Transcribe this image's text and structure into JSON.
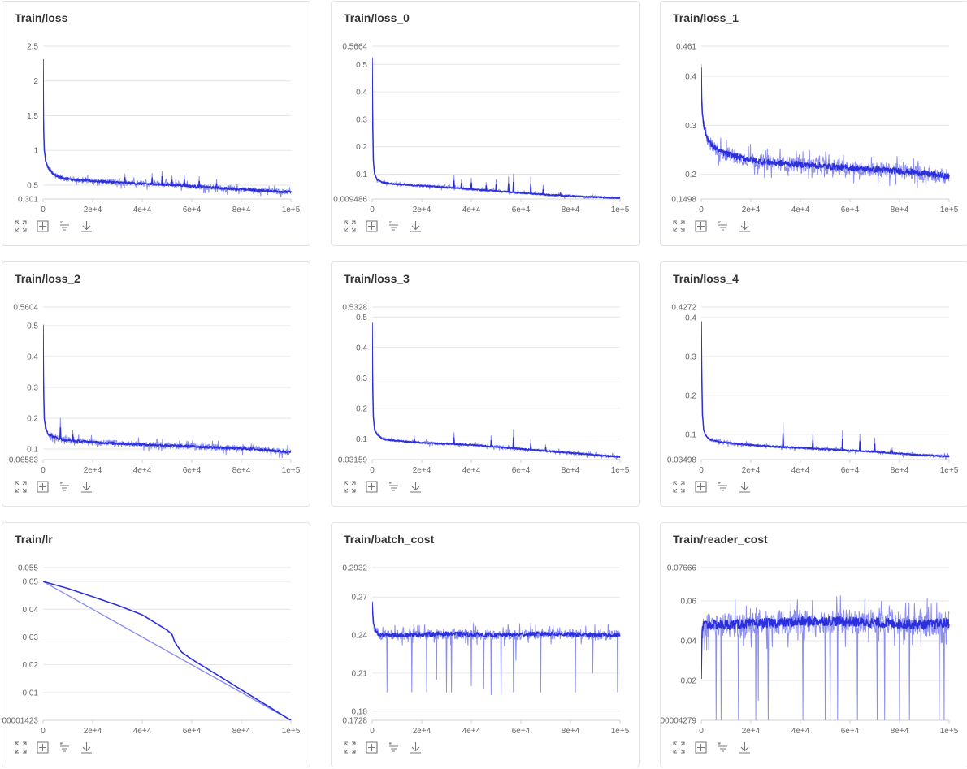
{
  "colors": {
    "line": "#2b2fdc",
    "raw": "#8c8ef0",
    "grid": "#e6e6e6",
    "axis": "#d0d0d0"
  },
  "toolbar": {
    "expand_icon": "expand-icon",
    "fit_icon": "fit-icon",
    "filter_icon": "filter-icon",
    "download_icon": "download-icon"
  },
  "chart_data": [
    {
      "type": "line",
      "title": "Train/loss",
      "x_ticks": [
        "0",
        "2e+4",
        "4e+4",
        "6e+4",
        "8e+4",
        "1e+5"
      ],
      "xlim": [
        0,
        100000
      ],
      "ylim": [
        0.301,
        2.5
      ],
      "y_ticks": [
        {
          "v": 2.5,
          "label": "2.5"
        },
        {
          "v": 2,
          "label": "2"
        },
        {
          "v": 1.5,
          "label": "1.5"
        },
        {
          "v": 1,
          "label": "1"
        },
        {
          "v": 0.5,
          "label": "0.5"
        },
        {
          "v": 0.301,
          "label": "0.301"
        }
      ],
      "series": [
        {
          "name": "smoothed",
          "x": [
            0,
            200,
            500,
            1000,
            2000,
            4000,
            8000,
            15000,
            25000,
            40000,
            55000,
            70000,
            85000,
            100000
          ],
          "values": [
            2.3,
            1.3,
            1.0,
            0.85,
            0.75,
            0.66,
            0.6,
            0.57,
            0.55,
            0.52,
            0.5,
            0.46,
            0.43,
            0.4
          ]
        }
      ],
      "noise": 0.04,
      "spikes": [
        [
          17000,
          0.62
        ],
        [
          33000,
          0.66
        ],
        [
          44000,
          0.67
        ],
        [
          48000,
          0.7
        ],
        [
          52000,
          0.63
        ],
        [
          57000,
          0.65
        ],
        [
          63000,
          0.62
        ],
        [
          70000,
          0.58
        ]
      ]
    },
    {
      "type": "line",
      "title": "Train/loss_0",
      "x_ticks": [
        "0",
        "2e+4",
        "4e+4",
        "6e+4",
        "8e+4",
        "1e+5"
      ],
      "xlim": [
        0,
        100000
      ],
      "ylim": [
        0.009486,
        0.5664
      ],
      "y_ticks": [
        {
          "v": 0.5664,
          "label": "0.5664"
        },
        {
          "v": 0.5,
          "label": "0.5"
        },
        {
          "v": 0.4,
          "label": "0.4"
        },
        {
          "v": 0.3,
          "label": "0.3"
        },
        {
          "v": 0.2,
          "label": "0.2"
        },
        {
          "v": 0.1,
          "label": "0.1"
        },
        {
          "v": 0.009486,
          "label": "0.009486"
        }
      ],
      "series": [
        {
          "name": "smoothed",
          "x": [
            0,
            200,
            500,
            1000,
            2000,
            4000,
            8000,
            15000,
            25000,
            40000,
            55000,
            70000,
            85000,
            100000
          ],
          "values": [
            0.52,
            0.3,
            0.15,
            0.1,
            0.08,
            0.07,
            0.065,
            0.06,
            0.055,
            0.045,
            0.035,
            0.025,
            0.018,
            0.013
          ]
        }
      ],
      "noise": 0.005,
      "spikes": [
        [
          33000,
          0.095
        ],
        [
          36000,
          0.08
        ],
        [
          40000,
          0.085
        ],
        [
          46000,
          0.07
        ],
        [
          50000,
          0.08
        ],
        [
          55000,
          0.09
        ],
        [
          57000,
          0.1
        ],
        [
          64000,
          0.09
        ],
        [
          69000,
          0.06
        ],
        [
          76000,
          0.035
        ]
      ]
    },
    {
      "type": "line",
      "title": "Train/loss_1",
      "x_ticks": [
        "0",
        "2e+4",
        "4e+4",
        "6e+4",
        "8e+4",
        "1e+5"
      ],
      "xlim": [
        0,
        100000
      ],
      "ylim": [
        0.1498,
        0.461
      ],
      "y_ticks": [
        {
          "v": 0.461,
          "label": "0.461"
        },
        {
          "v": 0.4,
          "label": "0.4"
        },
        {
          "v": 0.3,
          "label": "0.3"
        },
        {
          "v": 0.2,
          "label": "0.2"
        },
        {
          "v": 0.1498,
          "label": "0.1498"
        }
      ],
      "series": [
        {
          "name": "smoothed",
          "x": [
            0,
            200,
            500,
            1000,
            2000,
            4000,
            8000,
            15000,
            25000,
            40000,
            55000,
            70000,
            85000,
            100000
          ],
          "values": [
            0.42,
            0.35,
            0.32,
            0.3,
            0.28,
            0.26,
            0.245,
            0.235,
            0.225,
            0.22,
            0.215,
            0.21,
            0.205,
            0.195
          ]
        }
      ],
      "noise": 0.015,
      "spikes": []
    },
    {
      "type": "line",
      "title": "Train/loss_2",
      "x_ticks": [
        "0",
        "2e+4",
        "4e+4",
        "6e+4",
        "8e+4",
        "1e+5"
      ],
      "xlim": [
        0,
        100000
      ],
      "ylim": [
        0.06583,
        0.5604
      ],
      "y_ticks": [
        {
          "v": 0.5604,
          "label": "0.5604"
        },
        {
          "v": 0.5,
          "label": "0.5"
        },
        {
          "v": 0.4,
          "label": "0.4"
        },
        {
          "v": 0.3,
          "label": "0.3"
        },
        {
          "v": 0.2,
          "label": "0.2"
        },
        {
          "v": 0.1,
          "label": "0.1"
        },
        {
          "v": 0.06583,
          "label": "0.06583"
        }
      ],
      "series": [
        {
          "name": "smoothed",
          "x": [
            0,
            200,
            500,
            1000,
            2000,
            4000,
            8000,
            15000,
            25000,
            40000,
            55000,
            70000,
            85000,
            100000
          ],
          "values": [
            0.5,
            0.3,
            0.2,
            0.17,
            0.15,
            0.14,
            0.13,
            0.125,
            0.12,
            0.115,
            0.11,
            0.105,
            0.1,
            0.09
          ]
        }
      ],
      "noise": 0.01,
      "spikes": [
        [
          7000,
          0.2
        ],
        [
          12000,
          0.16
        ]
      ]
    },
    {
      "type": "line",
      "title": "Train/loss_3",
      "x_ticks": [
        "0",
        "2e+4",
        "4e+4",
        "6e+4",
        "8e+4",
        "1e+5"
      ],
      "xlim": [
        0,
        100000
      ],
      "ylim": [
        0.03159,
        0.5328
      ],
      "y_ticks": [
        {
          "v": 0.5328,
          "label": "0.5328"
        },
        {
          "v": 0.5,
          "label": "0.5"
        },
        {
          "v": 0.4,
          "label": "0.4"
        },
        {
          "v": 0.3,
          "label": "0.3"
        },
        {
          "v": 0.2,
          "label": "0.2"
        },
        {
          "v": 0.1,
          "label": "0.1"
        },
        {
          "v": 0.03159,
          "label": "0.03159"
        }
      ],
      "series": [
        {
          "name": "smoothed",
          "x": [
            0,
            200,
            500,
            1000,
            2000,
            4000,
            8000,
            15000,
            25000,
            40000,
            55000,
            70000,
            85000,
            100000
          ],
          "values": [
            0.48,
            0.28,
            0.17,
            0.13,
            0.115,
            0.1,
            0.095,
            0.09,
            0.085,
            0.08,
            0.07,
            0.06,
            0.05,
            0.04
          ]
        }
      ],
      "noise": 0.005,
      "spikes": [
        [
          17000,
          0.11
        ],
        [
          33000,
          0.12
        ],
        [
          48000,
          0.11
        ],
        [
          57000,
          0.13
        ],
        [
          64000,
          0.1
        ],
        [
          70000,
          0.08
        ]
      ]
    },
    {
      "type": "line",
      "title": "Train/loss_4",
      "x_ticks": [
        "0",
        "2e+4",
        "4e+4",
        "6e+4",
        "8e+4",
        "1e+5"
      ],
      "xlim": [
        0,
        100000
      ],
      "ylim": [
        0.03498,
        0.4272
      ],
      "y_ticks": [
        {
          "v": 0.4272,
          "label": "0.4272"
        },
        {
          "v": 0.4,
          "label": "0.4"
        },
        {
          "v": 0.3,
          "label": "0.3"
        },
        {
          "v": 0.2,
          "label": "0.2"
        },
        {
          "v": 0.1,
          "label": "0.1"
        },
        {
          "v": 0.03498,
          "label": "0.03498"
        }
      ],
      "series": [
        {
          "name": "smoothed",
          "x": [
            0,
            200,
            500,
            1000,
            2000,
            4000,
            8000,
            15000,
            25000,
            40000,
            55000,
            70000,
            85000,
            100000
          ],
          "values": [
            0.39,
            0.25,
            0.15,
            0.11,
            0.095,
            0.085,
            0.08,
            0.075,
            0.07,
            0.065,
            0.06,
            0.055,
            0.048,
            0.043
          ]
        }
      ],
      "noise": 0.004,
      "spikes": [
        [
          33000,
          0.13
        ],
        [
          45000,
          0.1
        ],
        [
          57000,
          0.11
        ],
        [
          64000,
          0.1
        ],
        [
          70000,
          0.09
        ],
        [
          77000,
          0.065
        ]
      ]
    },
    {
      "type": "line",
      "title": "Train/lr",
      "x_ticks": [
        "0",
        "2e+4",
        "4e+4",
        "6e+4",
        "8e+4",
        "1e+5"
      ],
      "xlim": [
        0,
        100000
      ],
      "ylim": [
        1.423e-05,
        0.055
      ],
      "y_ticks": [
        {
          "v": 0.055,
          "label": "0.055"
        },
        {
          "v": 0.05,
          "label": "0.05"
        },
        {
          "v": 0.04,
          "label": "0.04"
        },
        {
          "v": 0.03,
          "label": "0.03"
        },
        {
          "v": 0.02,
          "label": "0.02"
        },
        {
          "v": 0.01,
          "label": "0.01"
        },
        {
          "v": 1.423e-05,
          "label": "0.00001423"
        }
      ],
      "series": [
        {
          "name": "smoothed",
          "x": [
            0,
            10000,
            20000,
            30000,
            40000,
            50000,
            52000,
            53000,
            54000,
            56000,
            60000,
            70000,
            80000,
            90000,
            100000
          ],
          "values": [
            0.05,
            0.0475,
            0.0445,
            0.0415,
            0.038,
            0.0325,
            0.031,
            0.0285,
            0.027,
            0.0245,
            0.022,
            0.0165,
            0.011,
            0.0055,
            0.0
          ]
        },
        {
          "name": "raw",
          "x": [
            0,
            100000
          ],
          "values": [
            0.05,
            0.0
          ]
        }
      ],
      "noise": 0,
      "spikes": []
    },
    {
      "type": "line",
      "title": "Train/batch_cost",
      "x_ticks": [
        "0",
        "2e+4",
        "4e+4",
        "6e+4",
        "8e+4",
        "1e+5"
      ],
      "xlim": [
        0,
        100000
      ],
      "ylim": [
        0.1728,
        0.2932
      ],
      "y_ticks": [
        {
          "v": 0.2932,
          "label": "0.2932"
        },
        {
          "v": 0.27,
          "label": "0.27"
        },
        {
          "v": 0.24,
          "label": "0.24"
        },
        {
          "v": 0.21,
          "label": "0.21"
        },
        {
          "v": 0.18,
          "label": "0.18"
        },
        {
          "v": 0.1728,
          "label": "0.1728"
        }
      ],
      "series": [
        {
          "name": "smoothed",
          "x": [
            0,
            500,
            1500,
            3000,
            10000,
            30000,
            50000,
            70000,
            90000,
            100000
          ],
          "values": [
            0.265,
            0.25,
            0.243,
            0.24,
            0.24,
            0.241,
            0.24,
            0.241,
            0.24,
            0.24
          ]
        }
      ],
      "noise": 0.004,
      "dips": [
        [
          6000,
          0.195
        ],
        [
          16000,
          0.195
        ],
        [
          22000,
          0.195
        ],
        [
          26000,
          0.205
        ],
        [
          30000,
          0.195
        ],
        [
          32000,
          0.195
        ],
        [
          40000,
          0.2
        ],
        [
          45000,
          0.198
        ],
        [
          48000,
          0.193
        ],
        [
          52000,
          0.193
        ],
        [
          57000,
          0.195
        ],
        [
          58000,
          0.22
        ],
        [
          68000,
          0.195
        ],
        [
          82000,
          0.195
        ],
        [
          89000,
          0.21
        ],
        [
          99000,
          0.195
        ]
      ]
    },
    {
      "type": "line",
      "title": "Train/reader_cost",
      "x_ticks": [
        "0",
        "2e+4",
        "4e+4",
        "6e+4",
        "8e+4",
        "1e+5"
      ],
      "xlim": [
        0,
        100000
      ],
      "ylim": [
        4.279e-05,
        0.07666
      ],
      "y_ticks": [
        {
          "v": 0.07666,
          "label": "0.07666"
        },
        {
          "v": 0.06,
          "label": "0.06"
        },
        {
          "v": 0.04,
          "label": "0.04"
        },
        {
          "v": 0.02,
          "label": "0.02"
        },
        {
          "v": 4.279e-05,
          "label": "0.00004279"
        }
      ],
      "series": [
        {
          "name": "smoothed",
          "x": [
            0,
            300,
            1000,
            10000,
            30000,
            50000,
            70000,
            90000,
            100000
          ],
          "values": [
            0.02,
            0.045,
            0.048,
            0.048,
            0.049,
            0.05,
            0.049,
            0.048,
            0.049
          ]
        }
      ],
      "noise": 0.006,
      "dips": [
        [
          6000,
          0.0
        ],
        [
          8000,
          0.0
        ],
        [
          15000,
          0.0
        ],
        [
          22000,
          0.0
        ],
        [
          23000,
          0.01
        ],
        [
          27000,
          0.0
        ],
        [
          41000,
          0.0
        ],
        [
          50000,
          0.0
        ],
        [
          52000,
          0.0
        ],
        [
          55000,
          0.0
        ],
        [
          63000,
          0.0
        ],
        [
          71000,
          0.0
        ],
        [
          74000,
          0.0
        ],
        [
          80000,
          0.0
        ],
        [
          84000,
          0.0
        ],
        [
          96000,
          0.0
        ],
        [
          98000,
          0.0
        ]
      ]
    }
  ]
}
